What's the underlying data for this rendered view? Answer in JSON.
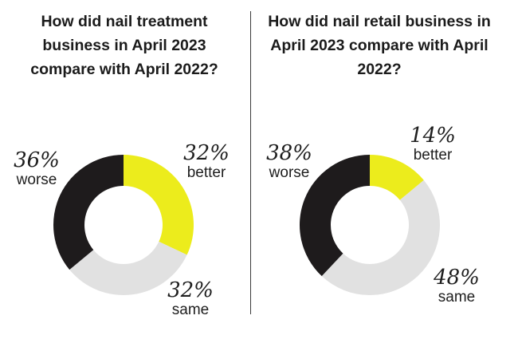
{
  "chart_data": [
    {
      "type": "pie",
      "title": "How did nail treatment business in April 2023 compare with April 2022?",
      "series": [
        {
          "label": "better",
          "value": 32,
          "display": "32%",
          "color": "#ecec1c"
        },
        {
          "label": "same",
          "value": 32,
          "display": "32%",
          "color": "#e1e1e1"
        },
        {
          "label": "worse",
          "value": 36,
          "display": "36%",
          "color": "#1e1b1c"
        }
      ]
    },
    {
      "type": "pie",
      "title": "How did nail retail business in April 2023 compare with April 2022?",
      "series": [
        {
          "label": "better",
          "value": 14,
          "display": "14%",
          "color": "#ecec1c"
        },
        {
          "label": "same",
          "value": 48,
          "display": "48%",
          "color": "#e1e1e1"
        },
        {
          "label": "worse",
          "value": 38,
          "display": "38%",
          "color": "#1e1b1c"
        }
      ]
    }
  ]
}
